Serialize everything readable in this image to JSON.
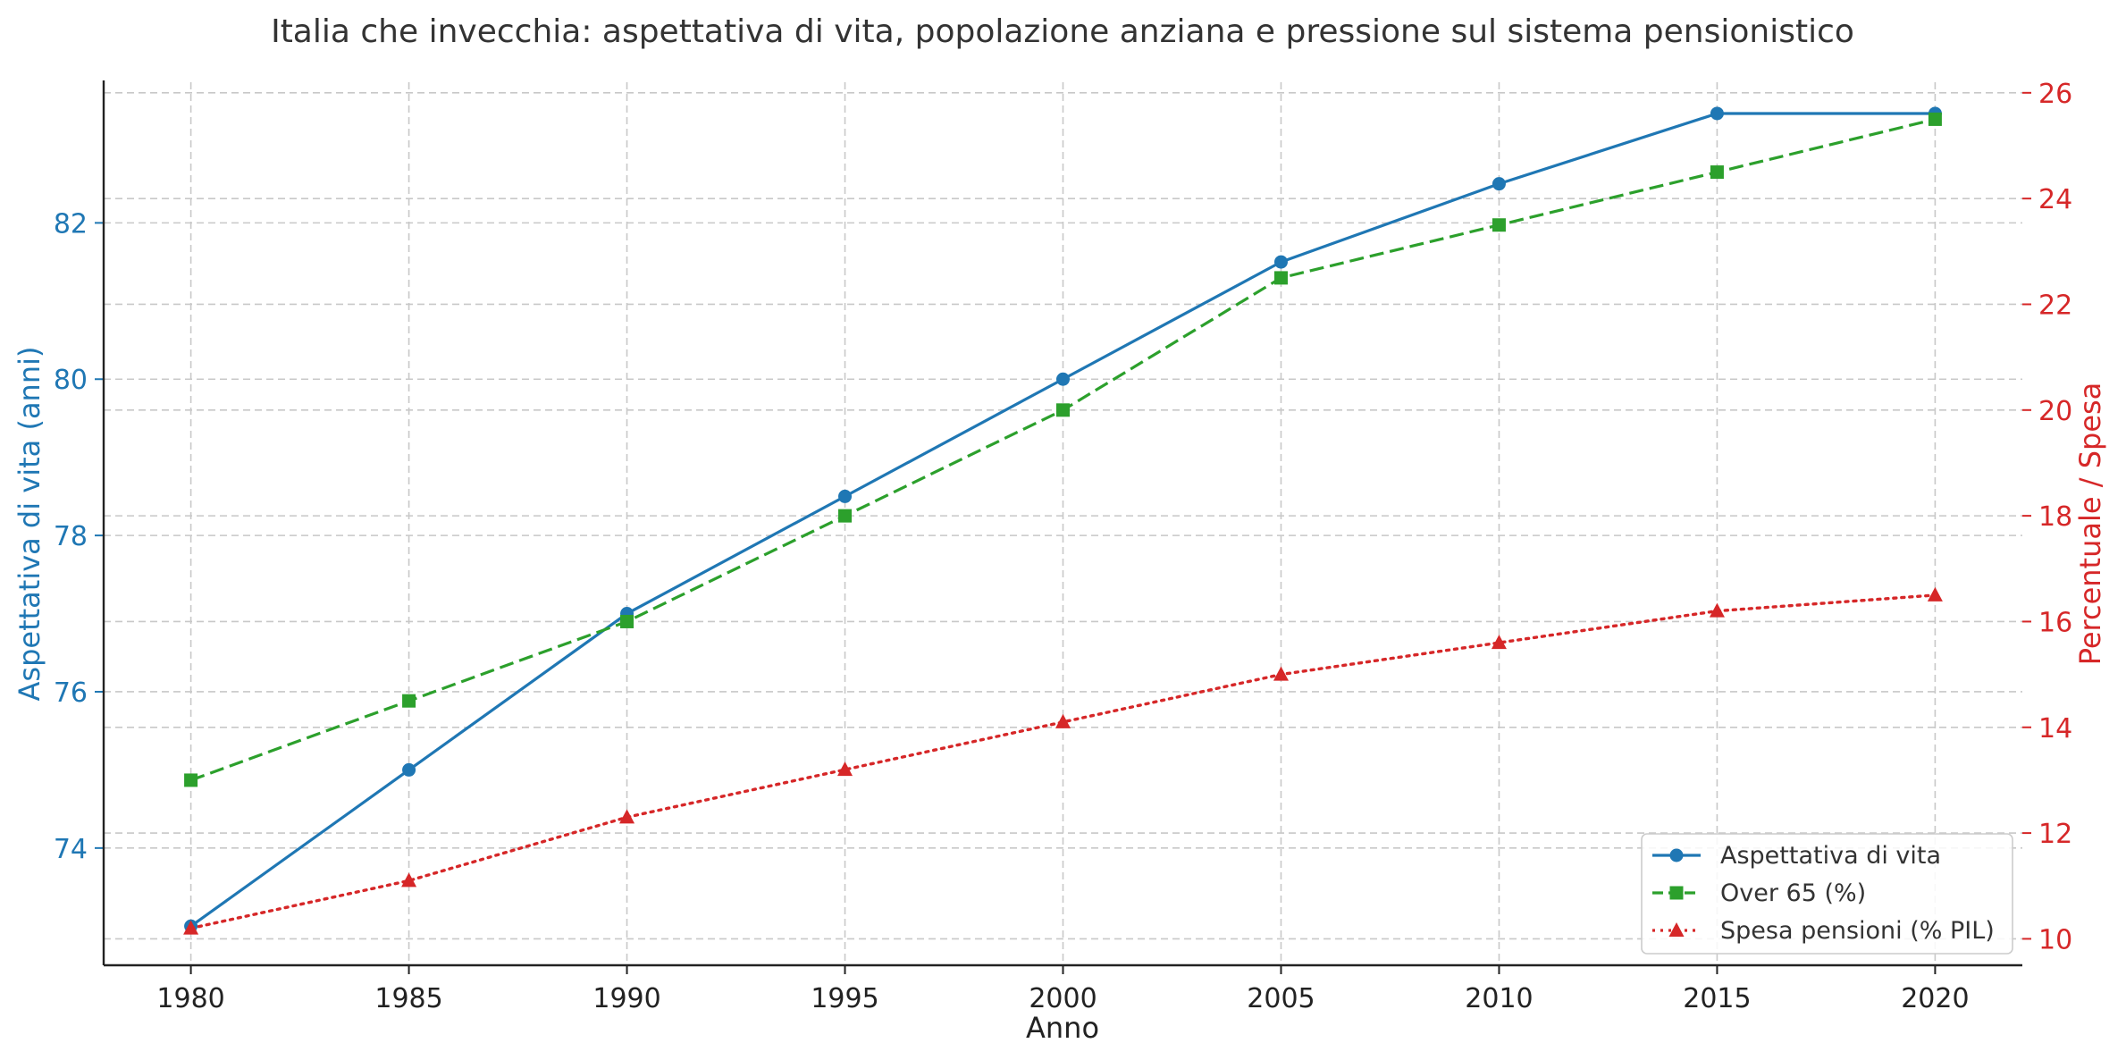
{
  "chart_data": {
    "type": "line",
    "title": "Italia che invecchia: aspettativa di vita, popolazione anziana e pressione sul sistema pensionistico",
    "xlabel": "Anno",
    "ylabel_left": "Aspettativa di vita (anni)",
    "ylabel_right": "Percentuale / Spesa",
    "x": [
      1980,
      1985,
      1990,
      1995,
      2000,
      2005,
      2010,
      2015,
      2020
    ],
    "x_ticks": [
      "1980",
      "1985",
      "1990",
      "1995",
      "2000",
      "2005",
      "2010",
      "2015",
      "2020"
    ],
    "ylim_left": [
      72.5,
      83.8
    ],
    "ylim_right": [
      9.5,
      26.2
    ],
    "yticks_left": [
      "74",
      "76",
      "78",
      "80",
      "82"
    ],
    "yticks_right": [
      "10",
      "12",
      "14",
      "16",
      "18",
      "20",
      "22",
      "24",
      "26"
    ],
    "grid": true,
    "legend_position": "bottom-right",
    "colors": {
      "left_axis": "#1f77b4",
      "right_axis": "#d62728",
      "text": "#333333"
    },
    "series": [
      {
        "name": "Aspettativa di vita",
        "axis": "left",
        "color": "#1f77b4",
        "line_style": "solid",
        "marker": "circle",
        "values": [
          73.0,
          75.0,
          77.0,
          78.5,
          80.0,
          81.5,
          82.5,
          83.4,
          83.4
        ]
      },
      {
        "name": "Over 65 (%)",
        "axis": "right",
        "color": "#2ca02c",
        "line_style": "dashed",
        "marker": "square",
        "values": [
          13.0,
          14.5,
          16.0,
          18.0,
          20.0,
          22.5,
          23.5,
          24.5,
          25.5
        ]
      },
      {
        "name": "Spesa pensioni (% PIL)",
        "axis": "right",
        "color": "#d62728",
        "line_style": "dotted",
        "marker": "triangle",
        "values": [
          10.2,
          11.1,
          12.3,
          13.2,
          14.1,
          15.0,
          15.6,
          16.2,
          16.5
        ]
      }
    ]
  }
}
